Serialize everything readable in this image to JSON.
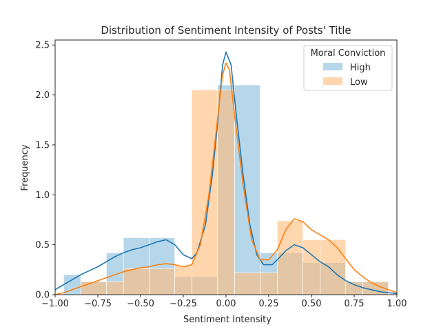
{
  "chart_data": {
    "type": "histogram",
    "title": "Distribution of  Sentiment Intensity of Posts' Title",
    "xlabel": "Sentiment Intensity",
    "ylabel": "Frequency",
    "xlim": [
      -1.0,
      1.0
    ],
    "ylim": [
      0,
      2.55
    ],
    "xticks": [
      -1.0,
      -0.75,
      -0.5,
      -0.25,
      0.0,
      0.25,
      0.5,
      0.75,
      1.0
    ],
    "xtick_labels": [
      "−1.00",
      "−0.75",
      "−0.50",
      "−0.25",
      "0.00",
      "0.25",
      "0.50",
      "0.75",
      "1.00"
    ],
    "yticks": [
      0.0,
      0.5,
      1.0,
      1.5,
      2.0,
      2.5
    ],
    "ytick_labels": [
      "0.0",
      "0.5",
      "1.0",
      "1.5",
      "2.0",
      "2.5"
    ],
    "grid": false,
    "legend": {
      "title": "Moral Conviction",
      "position": "upper-right"
    },
    "series": [
      {
        "name": "High",
        "color": "#1f77b4",
        "fill_color": "#9ecae1",
        "bins": [
          {
            "x0": -0.95,
            "x1": -0.85,
            "y": 0.2
          },
          {
            "x0": -0.85,
            "x1": -0.7,
            "y": 0.13
          },
          {
            "x0": -0.7,
            "x1": -0.6,
            "y": 0.42
          },
          {
            "x0": -0.6,
            "x1": -0.45,
            "y": 0.57
          },
          {
            "x0": -0.45,
            "x1": -0.3,
            "y": 0.57
          },
          {
            "x0": -0.3,
            "x1": -0.2,
            "y": 0.18
          },
          {
            "x0": -0.2,
            "x1": -0.05,
            "y": 0.18
          },
          {
            "x0": -0.05,
            "x1": 0.05,
            "y": 2.1
          },
          {
            "x0": 0.05,
            "x1": 0.2,
            "y": 2.1
          },
          {
            "x0": 0.2,
            "x1": 0.3,
            "y": 0.42
          },
          {
            "x0": 0.3,
            "x1": 0.45,
            "y": 0.42
          },
          {
            "x0": 0.45,
            "x1": 0.55,
            "y": 0.32
          },
          {
            "x0": 0.55,
            "x1": 0.7,
            "y": 0.32
          },
          {
            "x0": 0.7,
            "x1": 0.8,
            "y": 0.13
          },
          {
            "x0": 0.8,
            "x1": 0.95,
            "y": 0.13
          }
        ],
        "kde": [
          [
            -1.0,
            0.05
          ],
          [
            -0.95,
            0.1
          ],
          [
            -0.9,
            0.15
          ],
          [
            -0.85,
            0.2
          ],
          [
            -0.8,
            0.24
          ],
          [
            -0.75,
            0.28
          ],
          [
            -0.7,
            0.33
          ],
          [
            -0.65,
            0.38
          ],
          [
            -0.6,
            0.42
          ],
          [
            -0.55,
            0.45
          ],
          [
            -0.5,
            0.47
          ],
          [
            -0.45,
            0.5
          ],
          [
            -0.4,
            0.53
          ],
          [
            -0.35,
            0.55
          ],
          [
            -0.3,
            0.5
          ],
          [
            -0.25,
            0.4
          ],
          [
            -0.2,
            0.36
          ],
          [
            -0.17,
            0.42
          ],
          [
            -0.12,
            0.7
          ],
          [
            -0.08,
            1.2
          ],
          [
            -0.05,
            1.7
          ],
          [
            -0.02,
            2.3
          ],
          [
            0.0,
            2.43
          ],
          [
            0.03,
            2.3
          ],
          [
            0.06,
            1.8
          ],
          [
            0.1,
            1.2
          ],
          [
            0.14,
            0.7
          ],
          [
            0.18,
            0.4
          ],
          [
            0.22,
            0.3
          ],
          [
            0.27,
            0.3
          ],
          [
            0.3,
            0.35
          ],
          [
            0.35,
            0.44
          ],
          [
            0.4,
            0.5
          ],
          [
            0.45,
            0.47
          ],
          [
            0.5,
            0.4
          ],
          [
            0.55,
            0.33
          ],
          [
            0.6,
            0.28
          ],
          [
            0.65,
            0.2
          ],
          [
            0.7,
            0.14
          ],
          [
            0.75,
            0.1
          ],
          [
            0.8,
            0.07
          ],
          [
            0.85,
            0.05
          ],
          [
            0.9,
            0.03
          ],
          [
            0.95,
            0.02
          ],
          [
            1.0,
            0.01
          ]
        ]
      },
      {
        "name": "Low",
        "color": "#ff7f0e",
        "fill_color": "#ffbb78",
        "bins": [
          {
            "x0": -0.85,
            "x1": -0.7,
            "y": 0.13
          },
          {
            "x0": -0.7,
            "x1": -0.6,
            "y": 0.13
          },
          {
            "x0": -0.6,
            "x1": -0.45,
            "y": 0.26
          },
          {
            "x0": -0.45,
            "x1": -0.3,
            "y": 0.26
          },
          {
            "x0": -0.3,
            "x1": -0.2,
            "y": 0.29
          },
          {
            "x0": -0.2,
            "x1": -0.05,
            "y": 2.05
          },
          {
            "x0": -0.05,
            "x1": 0.05,
            "y": 2.05
          },
          {
            "x0": 0.05,
            "x1": 0.2,
            "y": 0.22
          },
          {
            "x0": 0.2,
            "x1": 0.3,
            "y": 0.22
          },
          {
            "x0": 0.3,
            "x1": 0.45,
            "y": 0.74
          },
          {
            "x0": 0.45,
            "x1": 0.55,
            "y": 0.55
          },
          {
            "x0": 0.55,
            "x1": 0.7,
            "y": 0.55
          },
          {
            "x0": 0.7,
            "x1": 0.8,
            "y": 0.13
          },
          {
            "x0": 0.8,
            "x1": 0.95,
            "y": 0.13
          }
        ],
        "kde": [
          [
            -1.0,
            0.0
          ],
          [
            -0.95,
            0.02
          ],
          [
            -0.9,
            0.05
          ],
          [
            -0.85,
            0.08
          ],
          [
            -0.8,
            0.11
          ],
          [
            -0.75,
            0.14
          ],
          [
            -0.7,
            0.17
          ],
          [
            -0.65,
            0.2
          ],
          [
            -0.6,
            0.23
          ],
          [
            -0.55,
            0.25
          ],
          [
            -0.5,
            0.27
          ],
          [
            -0.45,
            0.28
          ],
          [
            -0.4,
            0.3
          ],
          [
            -0.35,
            0.31
          ],
          [
            -0.3,
            0.3
          ],
          [
            -0.25,
            0.28
          ],
          [
            -0.2,
            0.3
          ],
          [
            -0.15,
            0.5
          ],
          [
            -0.1,
            1.0
          ],
          [
            -0.06,
            1.6
          ],
          [
            -0.02,
            2.2
          ],
          [
            0.0,
            2.32
          ],
          [
            0.02,
            2.25
          ],
          [
            0.05,
            1.8
          ],
          [
            0.1,
            1.1
          ],
          [
            0.15,
            0.55
          ],
          [
            0.2,
            0.35
          ],
          [
            0.25,
            0.35
          ],
          [
            0.3,
            0.45
          ],
          [
            0.35,
            0.65
          ],
          [
            0.4,
            0.76
          ],
          [
            0.45,
            0.73
          ],
          [
            0.5,
            0.65
          ],
          [
            0.55,
            0.6
          ],
          [
            0.6,
            0.55
          ],
          [
            0.65,
            0.47
          ],
          [
            0.7,
            0.36
          ],
          [
            0.75,
            0.25
          ],
          [
            0.8,
            0.18
          ],
          [
            0.85,
            0.12
          ],
          [
            0.9,
            0.08
          ],
          [
            0.95,
            0.05
          ],
          [
            1.0,
            0.02
          ]
        ]
      }
    ]
  }
}
